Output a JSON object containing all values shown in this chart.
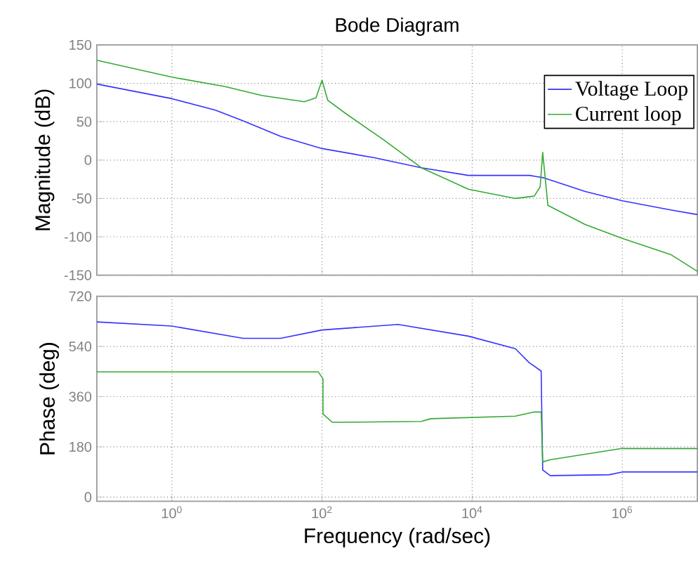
{
  "chart_data": [
    {
      "type": "line",
      "title": "Bode Diagram",
      "ylabel": "Magnitude (dB)",
      "log": "x",
      "grid": true,
      "legend": "top right",
      "tick_labels": "y",
      "xlim": [
        0.1,
        10000000
      ],
      "xticks": [
        {
          "value": 1,
          "label": null
        },
        {
          "value": 100,
          "label": null
        },
        {
          "value": 10000,
          "label": null
        },
        {
          "value": 1000000,
          "label": null
        }
      ],
      "ylim": [
        -150,
        150
      ],
      "yticks": [
        -150,
        -100,
        -50,
        0,
        50,
        100,
        150
      ],
      "series": [
        {
          "name": "Voltage Loop",
          "color": "#3333ff",
          "x": [
            0.1,
            1,
            3.8,
            8.9,
            28,
            100,
            500,
            2100,
            8900,
            58000,
            89000,
            320000,
            1000000,
            4400000,
            10000000
          ],
          "values": [
            99,
            80,
            65,
            51,
            31,
            15,
            3,
            -10,
            -20,
            -20,
            -23,
            -41,
            -53,
            -65,
            -71
          ]
        },
        {
          "name": "Current loop",
          "color": "#33aa33",
          "x": [
            0.1,
            1,
            5,
            16,
            58,
            83,
            100,
            119,
            211,
            670,
            2100,
            8900,
            37600,
            67000,
            80500,
            87000,
            102000,
            320000,
            1000000,
            4400000,
            10000000
          ],
          "values": [
            130,
            108,
            96,
            84,
            76,
            81,
            104,
            78,
            60,
            26,
            -10,
            -38,
            -50,
            -47,
            -35,
            10,
            -59,
            -84,
            -102,
            -123,
            -145
          ]
        }
      ]
    },
    {
      "type": "line",
      "xlabel": "Frequency  (rad/sec)",
      "ylabel": "Phase (deg)",
      "log": "x",
      "grid": true,
      "xlim": [
        0.1,
        10000000
      ],
      "xticks": [
        {
          "value": 1,
          "label": "10$^{0}$"
        },
        {
          "value": 100,
          "label": "10$^{2}$"
        },
        {
          "value": 10000,
          "label": "10$^{4}$"
        },
        {
          "value": 1000000,
          "label": "10$^{6}$"
        }
      ],
      "ylim": [
        -15,
        720
      ],
      "yticks": [
        0,
        180,
        360,
        540,
        720
      ],
      "series": [
        {
          "color": "#3333ff",
          "x": [
            0.1,
            1,
            8.9,
            28,
            100,
            1030,
            8900,
            37600,
            57500,
            83000,
            87000,
            110000,
            670000,
            1000000,
            10000000
          ],
          "values": [
            628,
            613,
            569,
            569,
            599,
            619,
            577,
            532,
            482,
            452,
            97,
            77,
            80,
            90,
            90
          ]
        },
        {
          "color": "#33aa33",
          "x": [
            0.1,
            89,
            103,
            103,
            137,
            2100,
            2800,
            37600,
            67000,
            83000,
            87000,
            110000,
            980000,
            10000000
          ],
          "values": [
            449,
            449,
            424,
            298,
            268,
            271,
            281,
            290,
            305,
            305,
            126,
            134,
            174,
            174
          ]
        }
      ]
    }
  ]
}
